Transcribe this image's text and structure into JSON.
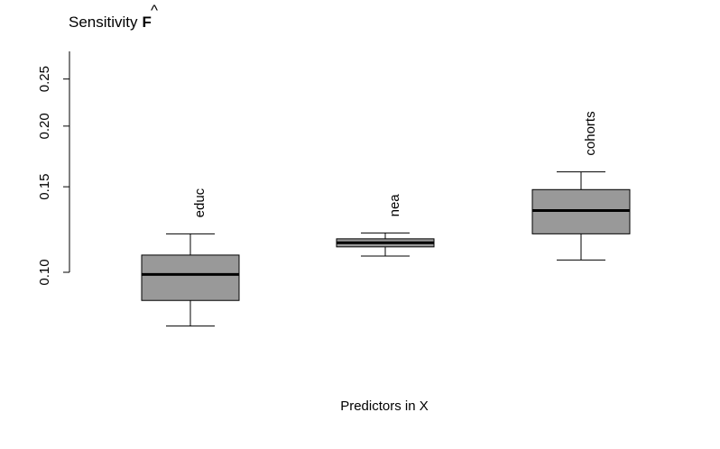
{
  "chart_data": {
    "type": "box",
    "title": "Sensitivity",
    "title_symbol": "F",
    "title_symbol_accent": "^",
    "xlabel": "Predictors in X",
    "ylabel": "",
    "y_scale": "log",
    "ylim": [
      0.062,
      0.285
    ],
    "y_ticks": [
      0.1,
      0.15,
      0.2,
      0.25
    ],
    "y_tick_labels": [
      "0.10",
      "0.15",
      "0.20",
      "0.25"
    ],
    "categories": [
      "educ",
      "nea",
      "cohorts"
    ],
    "boxes": [
      {
        "label": "educ",
        "whisker_low": 0.0775,
        "q1": 0.0875,
        "median": 0.099,
        "q3": 0.1085,
        "whisker_high": 0.12
      },
      {
        "label": "nea",
        "whisker_low": 0.108,
        "q1": 0.1128,
        "median": 0.115,
        "q3": 0.1172,
        "whisker_high": 0.1205
      },
      {
        "label": "cohorts",
        "whisker_low": 0.106,
        "q1": 0.12,
        "median": 0.134,
        "q3": 0.148,
        "whisker_high": 0.161
      }
    ],
    "box_fill": "#999999",
    "grid": false,
    "legend": "none"
  }
}
